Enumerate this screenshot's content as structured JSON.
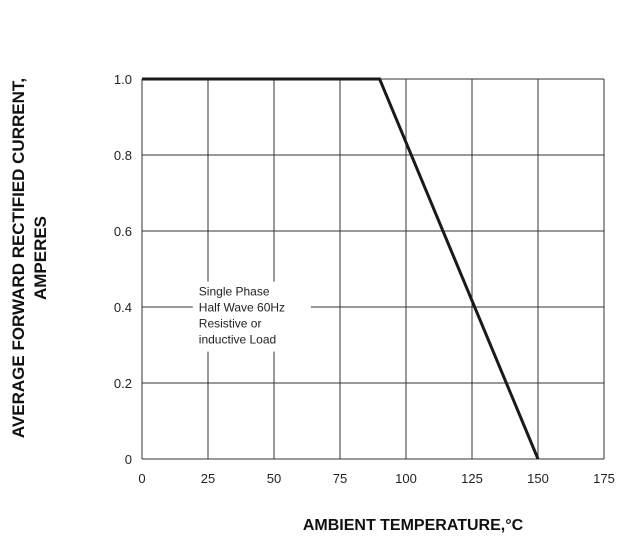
{
  "chart_data": {
    "type": "line",
    "title": "",
    "xlabel": "AMBIENT TEMPERATURE,°C",
    "ylabel_lines": [
      "AVERAGE FORWARD RECTIFIED CURRENT,",
      "AMPERES"
    ],
    "xlim": [
      0,
      175
    ],
    "ylim": [
      0,
      1.0
    ],
    "x_ticks": [
      0,
      25,
      50,
      75,
      100,
      125,
      150,
      175
    ],
    "x_tick_labels": [
      "0",
      "25",
      "50",
      "75",
      "100",
      "125",
      "150",
      "175"
    ],
    "y_ticks": [
      0,
      0.2,
      0.4,
      0.6,
      0.8,
      1.0
    ],
    "y_tick_labels": [
      "0",
      "0.2",
      "0.4",
      "0.6",
      "0.8",
      "1.0"
    ],
    "grid": true,
    "series": [
      {
        "x": [
          0,
          90,
          150
        ],
        "y": [
          1.0,
          1.0,
          0
        ]
      }
    ],
    "annotation": {
      "lines": [
        "Single Phase",
        "Half Wave 60Hz",
        "Resistive or",
        "inductive Load"
      ],
      "x": 20,
      "y": 0.43
    },
    "colors": {
      "line": "#1a1a1a",
      "grid": "#333333",
      "text": "#111111"
    }
  }
}
